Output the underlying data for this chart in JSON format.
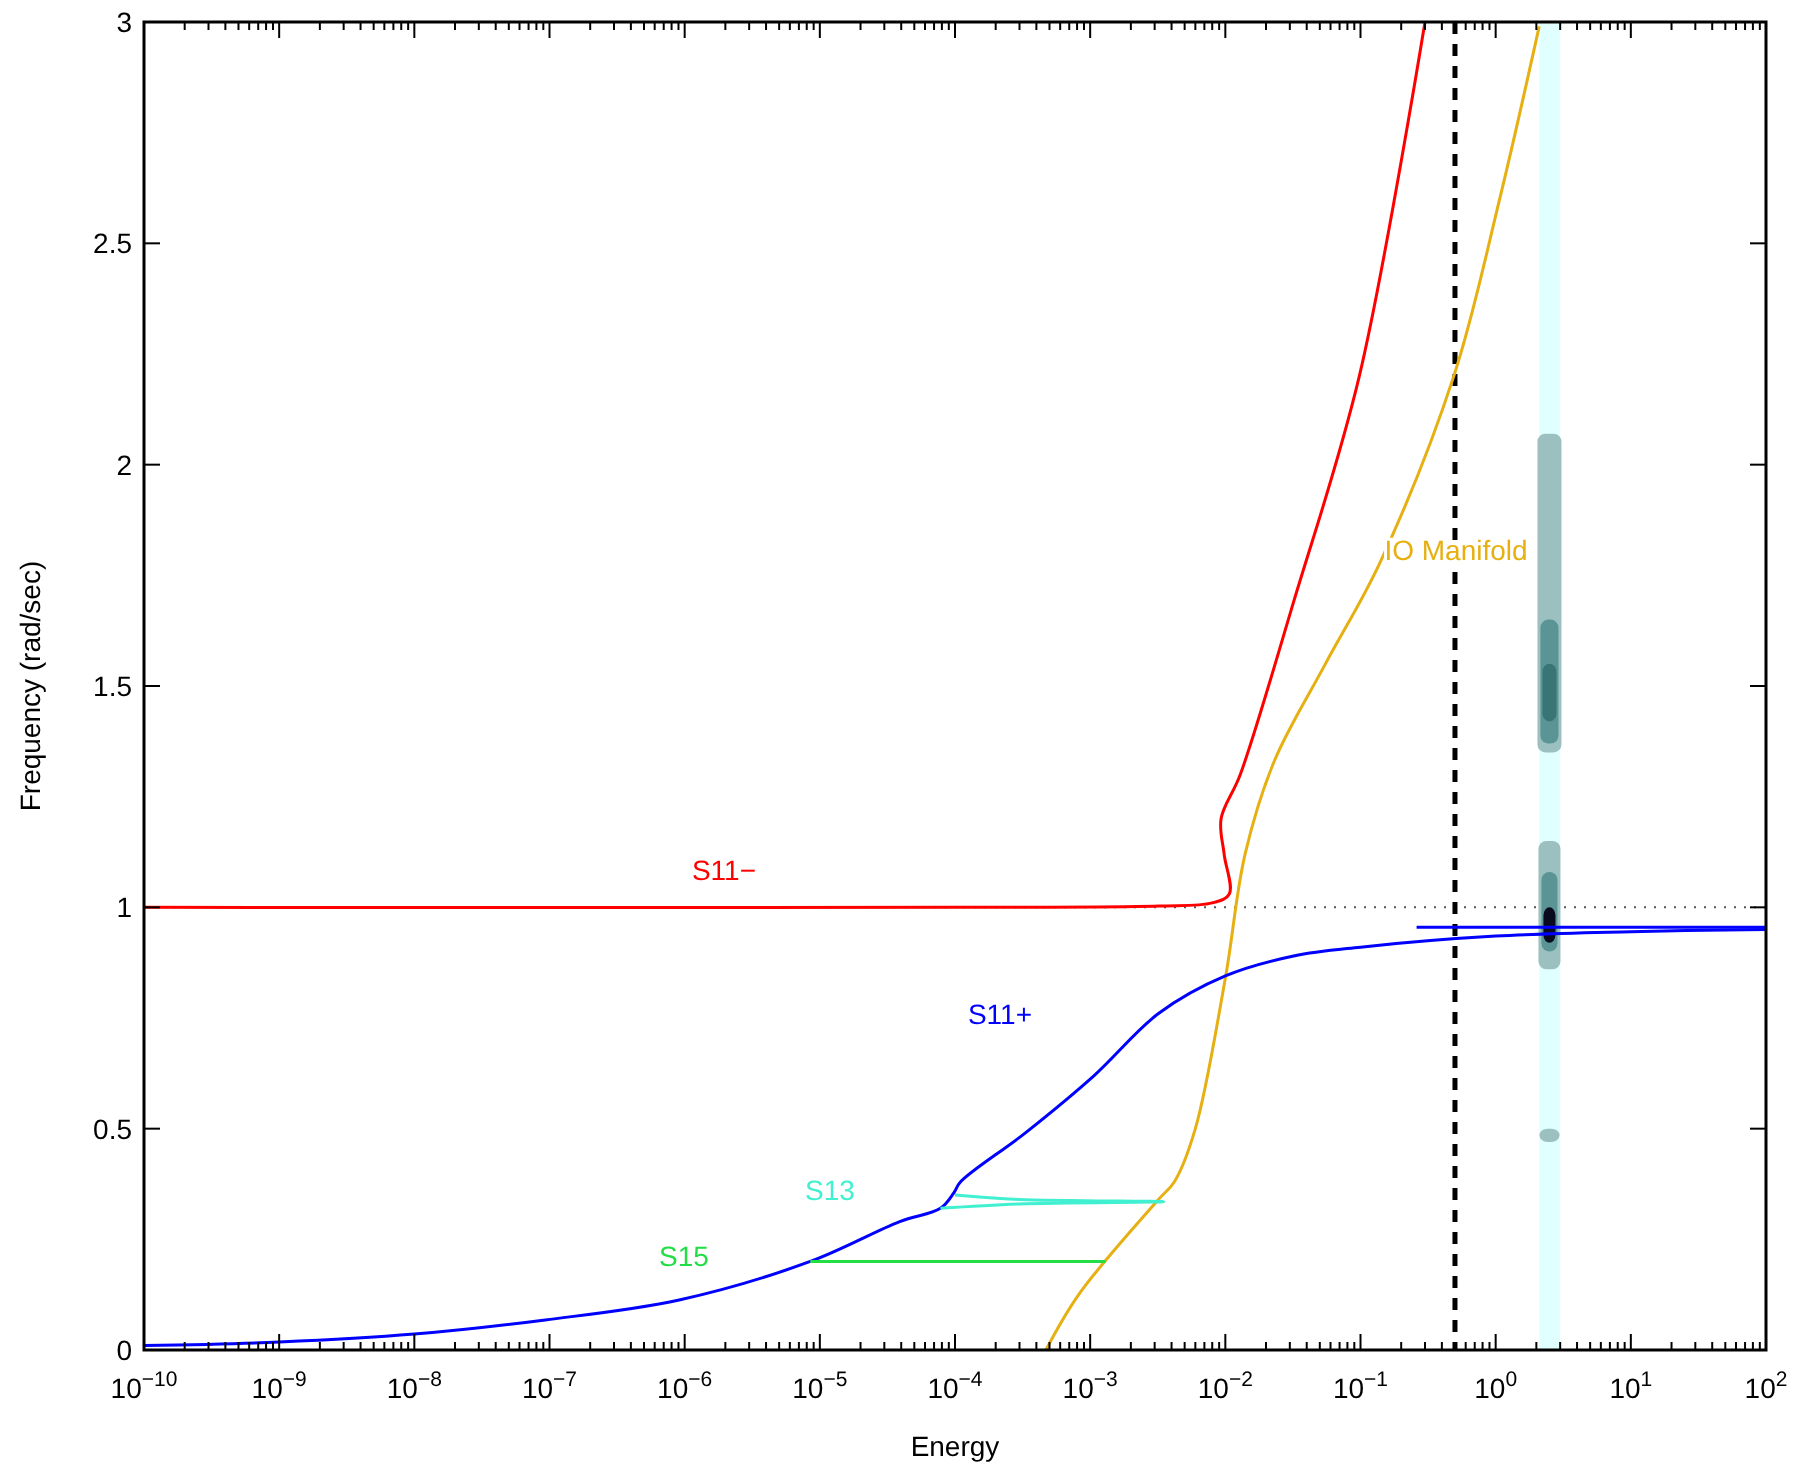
{
  "chart_data": {
    "type": "line",
    "xlabel": "Energy",
    "ylabel": "Frequency (rad/sec)",
    "log": "x",
    "grid": false,
    "legend": false,
    "marker": "none",
    "line_style": "solid",
    "xlim": [
      1e-10,
      100
    ],
    "ylim": [
      0,
      3
    ],
    "xticks": [
      {
        "value": 1e-10,
        "label": "10$^{−10}$"
      },
      {
        "value": 1e-09,
        "label": "10$^{−9}$"
      },
      {
        "value": 1e-08,
        "label": "10$^{−8}$"
      },
      {
        "value": 1e-07,
        "label": "10$^{−7}$"
      },
      {
        "value": 1e-06,
        "label": "10$^{−6}$"
      },
      {
        "value": 1e-05,
        "label": "10$^{−5}$"
      },
      {
        "value": 0.0001,
        "label": "10$^{−4}$"
      },
      {
        "value": 0.001,
        "label": "10$^{−3}$"
      },
      {
        "value": 0.01,
        "label": "10$^{−2}$"
      },
      {
        "value": 0.1,
        "label": "10$^{−1}$"
      },
      {
        "value": 1,
        "label": "10$^{0}$"
      },
      {
        "value": 10,
        "label": "10$^{1}$"
      },
      {
        "value": 100,
        "label": "10$^{2}$"
      },
      {
        "value": 2e-10,
        "label": null
      },
      {
        "value": 3e-10,
        "label": null
      },
      {
        "value": 4e-10,
        "label": null
      },
      {
        "value": 5e-10,
        "label": null
      },
      {
        "value": 6e-10,
        "label": null
      },
      {
        "value": 7e-10,
        "label": null
      },
      {
        "value": 8e-10,
        "label": null
      },
      {
        "value": 9e-10,
        "label": null
      },
      {
        "value": 2e-09,
        "label": null
      },
      {
        "value": 3e-09,
        "label": null
      },
      {
        "value": 4e-09,
        "label": null
      },
      {
        "value": 5e-09,
        "label": null
      },
      {
        "value": 6e-09,
        "label": null
      },
      {
        "value": 7e-09,
        "label": null
      },
      {
        "value": 8e-09,
        "label": null
      },
      {
        "value": 9e-09,
        "label": null
      },
      {
        "value": 2e-08,
        "label": null
      },
      {
        "value": 3e-08,
        "label": null
      },
      {
        "value": 4e-08,
        "label": null
      },
      {
        "value": 5e-08,
        "label": null
      },
      {
        "value": 6e-08,
        "label": null
      },
      {
        "value": 7e-08,
        "label": null
      },
      {
        "value": 8e-08,
        "label": null
      },
      {
        "value": 9e-08,
        "label": null
      },
      {
        "value": 2e-07,
        "label": null
      },
      {
        "value": 3e-07,
        "label": null
      },
      {
        "value": 4e-07,
        "label": null
      },
      {
        "value": 5e-07,
        "label": null
      },
      {
        "value": 6e-07,
        "label": null
      },
      {
        "value": 7e-07,
        "label": null
      },
      {
        "value": 8e-07,
        "label": null
      },
      {
        "value": 9e-07,
        "label": null
      },
      {
        "value": 2e-06,
        "label": null
      },
      {
        "value": 3e-06,
        "label": null
      },
      {
        "value": 4e-06,
        "label": null
      },
      {
        "value": 5e-06,
        "label": null
      },
      {
        "value": 6e-06,
        "label": null
      },
      {
        "value": 7e-06,
        "label": null
      },
      {
        "value": 8e-06,
        "label": null
      },
      {
        "value": 9e-06,
        "label": null
      },
      {
        "value": 2e-05,
        "label": null
      },
      {
        "value": 3e-05,
        "label": null
      },
      {
        "value": 4e-05,
        "label": null
      },
      {
        "value": 5e-05,
        "label": null
      },
      {
        "value": 6e-05,
        "label": null
      },
      {
        "value": 7e-05,
        "label": null
      },
      {
        "value": 8e-05,
        "label": null
      },
      {
        "value": 9e-05,
        "label": null
      },
      {
        "value": 0.0002,
        "label": null
      },
      {
        "value": 0.0003,
        "label": null
      },
      {
        "value": 0.0004,
        "label": null
      },
      {
        "value": 0.0005,
        "label": null
      },
      {
        "value": 0.0006,
        "label": null
      },
      {
        "value": 0.0007,
        "label": null
      },
      {
        "value": 0.0008,
        "label": null
      },
      {
        "value": 0.0009,
        "label": null
      },
      {
        "value": 0.002,
        "label": null
      },
      {
        "value": 0.003,
        "label": null
      },
      {
        "value": 0.004,
        "label": null
      },
      {
        "value": 0.005,
        "label": null
      },
      {
        "value": 0.006,
        "label": null
      },
      {
        "value": 0.007,
        "label": null
      },
      {
        "value": 0.008,
        "label": null
      },
      {
        "value": 0.009,
        "label": null
      },
      {
        "value": 0.02,
        "label": null
      },
      {
        "value": 0.03,
        "label": null
      },
      {
        "value": 0.04,
        "label": null
      },
      {
        "value": 0.05,
        "label": null
      },
      {
        "value": 0.06,
        "label": null
      },
      {
        "value": 0.07,
        "label": null
      },
      {
        "value": 0.08,
        "label": null
      },
      {
        "value": 0.09,
        "label": null
      },
      {
        "value": 0.2,
        "label": null
      },
      {
        "value": 0.3,
        "label": null
      },
      {
        "value": 0.4,
        "label": null
      },
      {
        "value": 0.5,
        "label": null
      },
      {
        "value": 0.6,
        "label": null
      },
      {
        "value": 0.7,
        "label": null
      },
      {
        "value": 0.8,
        "label": null
      },
      {
        "value": 0.9,
        "label": null
      },
      {
        "value": 2,
        "label": null
      },
      {
        "value": 3,
        "label": null
      },
      {
        "value": 4,
        "label": null
      },
      {
        "value": 5,
        "label": null
      },
      {
        "value": 6,
        "label": null
      },
      {
        "value": 7,
        "label": null
      },
      {
        "value": 8,
        "label": null
      },
      {
        "value": 9,
        "label": null
      },
      {
        "value": 20,
        "label": null
      },
      {
        "value": 30,
        "label": null
      },
      {
        "value": 40,
        "label": null
      },
      {
        "value": 50,
        "label": null
      },
      {
        "value": 60,
        "label": null
      },
      {
        "value": 70,
        "label": null
      },
      {
        "value": 80,
        "label": null
      },
      {
        "value": 90,
        "label": null
      }
    ],
    "yticks": [
      0,
      0.5,
      1,
      1.5,
      2,
      2.5,
      3
    ],
    "bands": [
      {
        "axis": "x",
        "from": 2.1,
        "to": 3.0,
        "color": "#e0ffff"
      }
    ],
    "ref_lines": [
      {
        "axis": "y",
        "value": 1,
        "color": "#555555",
        "line_style": "dotted"
      },
      {
        "axis": "x",
        "value": 0.5,
        "color": "#000000",
        "line_style": "dashed"
      }
    ],
    "series": [
      {
        "type": "bar",
        "color": "#9cc0c0",
        "x": [
          2.5
        ],
        "base": [
          1.35
        ],
        "values": [
          0.72
        ]
      },
      {
        "type": "bar",
        "color": "#9cc0c0",
        "x": [
          2.5
        ],
        "base": [
          0.86
        ],
        "values": [
          0.29
        ]
      },
      {
        "type": "bar",
        "color": "#9cc0c0",
        "x": [
          2.5
        ],
        "base": [
          0.47
        ],
        "values": [
          0.03
        ]
      },
      {
        "type": "bar",
        "color": "#5a9494",
        "x": [
          2.5
        ],
        "base": [
          1.37
        ],
        "values": [
          0.28
        ]
      },
      {
        "type": "bar",
        "color": "#5a9494",
        "x": [
          2.5
        ],
        "base": [
          0.9
        ],
        "values": [
          0.18
        ]
      },
      {
        "type": "bar",
        "color": "#3a7575",
        "x": [
          2.5
        ],
        "base": [
          1.42
        ],
        "values": [
          0.13
        ]
      },
      {
        "type": "bar",
        "color": "#0a0a1e",
        "x": [
          2.5
        ],
        "base": [
          0.92
        ],
        "values": [
          0.08
        ]
      },
      {
        "name": "S11−",
        "color": "#ff0000",
        "x": [
          1e-10,
          0.0001,
          0.0032,
          0.008,
          0.0107,
          0.0098,
          0.0093,
          0.0129,
          0.032,
          0.098,
          0.3
        ],
        "values": [
          1,
          1,
          1.003,
          1.01,
          1.03,
          1.12,
          1.2,
          1.3,
          1.69,
          2.2,
          3
        ]
      },
      {
        "name": "IO Manifold",
        "color": "#e6b012",
        "x": [
          0.00047,
          0.00083,
          0.0032,
          0.0042,
          0.006,
          0.01,
          0.014,
          0.023,
          0.055,
          0.14,
          0.49,
          1.07,
          2.1
        ],
        "values": [
          0,
          0.127,
          0.34,
          0.38,
          0.5,
          0.84,
          1.12,
          1.33,
          1.55,
          1.78,
          2.2,
          2.6,
          2.99
        ]
      },
      {
        "name": "S11+",
        "color": "#0000ff",
        "x": [
          1e-10,
          1e-09,
          1e-08,
          9.3e-08,
          9.1e-07,
          8.5e-06,
          3.9e-05,
          7.8e-05,
          9.8e-05,
          0.00011,
          0.00033,
          0.00107,
          0.0032,
          0.01,
          0.032,
          0.1,
          1,
          10,
          100
        ],
        "values": [
          0.01,
          0.018,
          0.036,
          0.068,
          0.113,
          0.2,
          0.29,
          0.32,
          0.355,
          0.38,
          0.49,
          0.62,
          0.76,
          0.845,
          0.89,
          0.91,
          0.935,
          0.945,
          0.95
        ]
      },
      {
        "color": "#0000ff",
        "x": [
          0.26,
          100
        ],
        "values": [
          0.955,
          0.955
        ]
      },
      {
        "name": "S13",
        "color": "#40f0d0",
        "x": [
          7.8e-05,
          0.0003,
          0.0035,
          0.0003,
          0.0001
        ],
        "values": [
          0.32,
          0.33,
          0.335,
          0.34,
          0.35
        ]
      },
      {
        "name": "S15",
        "color": "#22dd44",
        "x": [
          8.5e-06,
          0.0013
        ],
        "values": [
          0.2,
          0.2
        ]
      }
    ]
  }
}
